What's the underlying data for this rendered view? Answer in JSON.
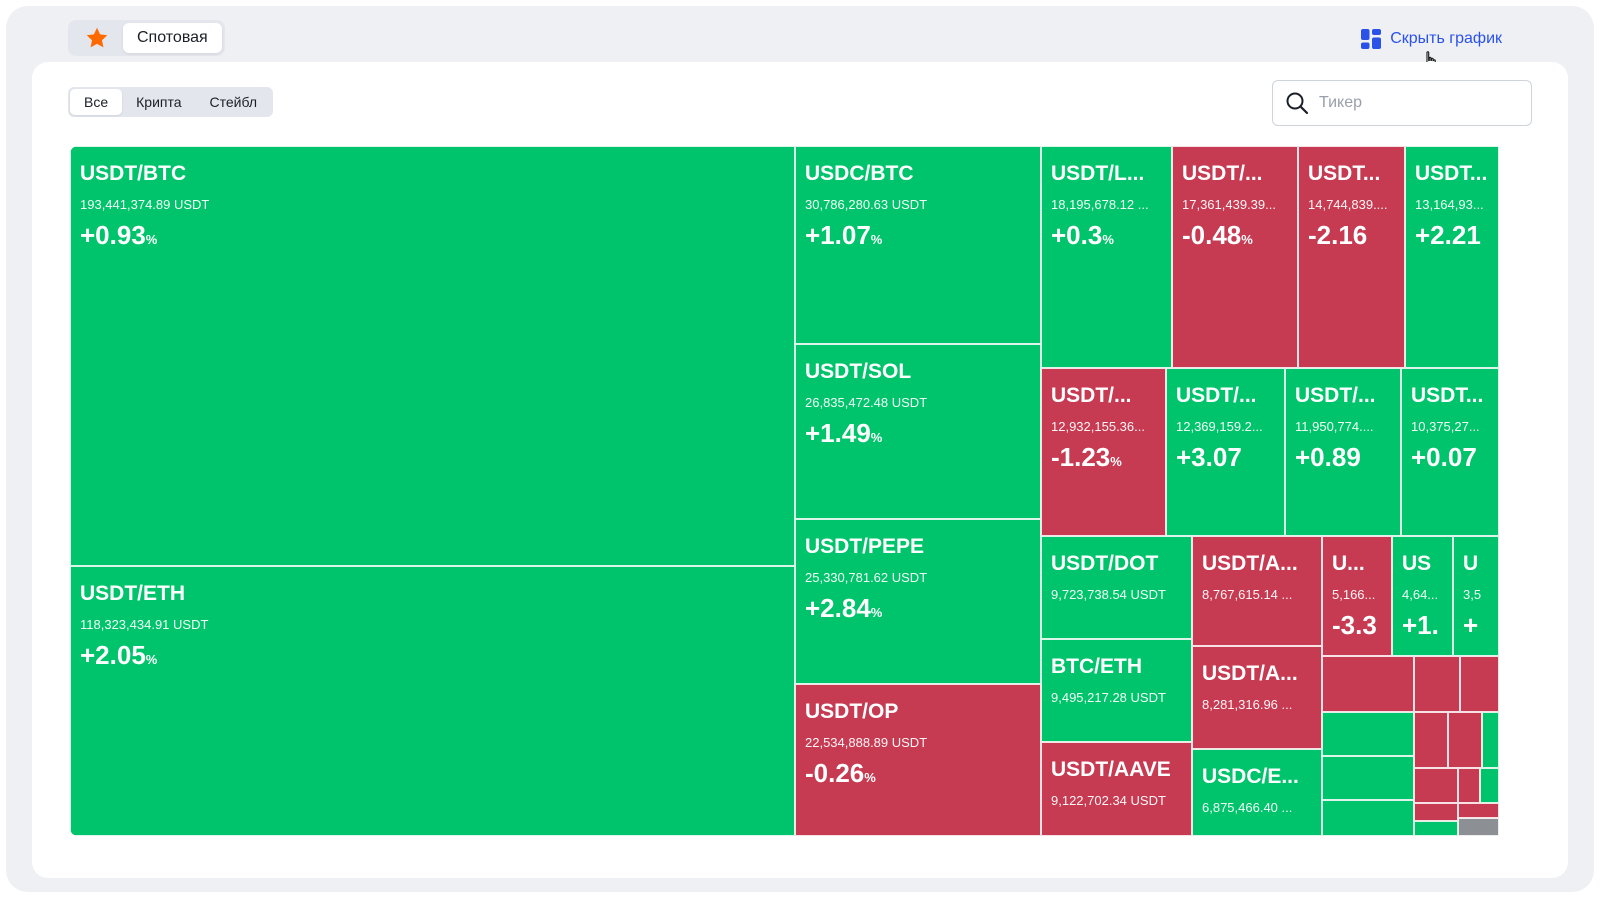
{
  "header": {
    "star_icon": "star-icon",
    "active_tab": "Спотовая",
    "hide_chart_label": "Скрыть график",
    "hide_chart_icon": "grid-icon"
  },
  "filters": [
    "Все",
    "Крипта",
    "Стейбл"
  ],
  "active_filter": "Все",
  "search": {
    "placeholder": "Тикер",
    "icon": "search-icon"
  },
  "colors": {
    "up": "#00c46b",
    "down": "#c63a52",
    "link": "#2b52e8",
    "star": "#ff6a00"
  },
  "tiles": [
    {
      "symbol": "USDT/BTC",
      "volume": "193,441,374.89 USDT",
      "change": "+0.93",
      "dir": "up"
    },
    {
      "symbol": "USDT/ETH",
      "volume": "118,323,434.91 USDT",
      "change": "+2.05",
      "dir": "up"
    },
    {
      "symbol": "USDC/BTC",
      "volume": "30,786,280.63 USDT",
      "change": "+1.07",
      "dir": "up"
    },
    {
      "symbol": "USDT/SOL",
      "volume": "26,835,472.48 USDT",
      "change": "+1.49",
      "dir": "up"
    },
    {
      "symbol": "USDT/PEPE",
      "volume": "25,330,781.62 USDT",
      "change": "+2.84",
      "dir": "up"
    },
    {
      "symbol": "USDT/OP",
      "volume": "22,534,888.89 USDT",
      "change": "-0.26",
      "dir": "down"
    },
    {
      "symbol": "USDT/L...",
      "volume": "18,195,678.12 ...",
      "change": "+0.3",
      "dir": "up"
    },
    {
      "symbol": "USDT/...",
      "volume": "17,361,439.39...",
      "change": "-0.48",
      "dir": "down"
    },
    {
      "symbol": "USDT...",
      "volume": "14,744,839....",
      "change": "-2.16",
      "dir": "down"
    },
    {
      "symbol": "USDT...",
      "volume": "13,164,93...",
      "change": "+2.21",
      "dir": "up"
    },
    {
      "symbol": "USDT/...",
      "volume": "12,932,155.36...",
      "change": "-1.23",
      "dir": "down"
    },
    {
      "symbol": "USDT/...",
      "volume": "12,369,159.2...",
      "change": "+3.07",
      "dir": "up"
    },
    {
      "symbol": "USDT/...",
      "volume": "11,950,774....",
      "change": "+0.89",
      "dir": "up"
    },
    {
      "symbol": "USDT...",
      "volume": "10,375,27...",
      "change": "+0.07",
      "dir": "up"
    },
    {
      "symbol": "USDT/DOT",
      "volume": "9,723,738.54 USDT",
      "change": "",
      "dir": "up"
    },
    {
      "symbol": "BTC/ETH",
      "volume": "9,495,217.28 USDT",
      "change": "",
      "dir": "up"
    },
    {
      "symbol": "USDT/AAVE",
      "volume": "9,122,702.34 USDT",
      "change": "",
      "dir": "down"
    },
    {
      "symbol": "USDT/A...",
      "volume": "8,767,615.14 ...",
      "change": "",
      "dir": "down"
    },
    {
      "symbol": "USDT/A...",
      "volume": "8,281,316.96 ...",
      "change": "",
      "dir": "down"
    },
    {
      "symbol": "USDC/E...",
      "volume": "6,875,466.40 ...",
      "change": "",
      "dir": "up"
    },
    {
      "symbol": "U...",
      "volume": "5,166...",
      "change": "-3.3",
      "dir": "down"
    },
    {
      "symbol": "US",
      "volume": "4,64...",
      "change": "+1.",
      "dir": "up"
    },
    {
      "symbol": "U",
      "volume": "3,5",
      "change": "+",
      "dir": "up"
    },
    {
      "symbol": "",
      "volume": "",
      "change": "",
      "dir": "down"
    },
    {
      "symbol": "",
      "volume": "",
      "change": "",
      "dir": "down"
    },
    {
      "symbol": "",
      "volume": "",
      "change": "",
      "dir": "down"
    },
    {
      "symbol": "",
      "volume": "",
      "change": "",
      "dir": "up"
    },
    {
      "symbol": "",
      "volume": "",
      "change": "",
      "dir": "up"
    },
    {
      "symbol": "",
      "volume": "",
      "change": "",
      "dir": "up"
    },
    {
      "symbol": "",
      "volume": "",
      "change": "",
      "dir": "down"
    },
    {
      "symbol": "",
      "volume": "",
      "change": "",
      "dir": "down"
    },
    {
      "symbol": "",
      "volume": "",
      "change": "",
      "dir": "up"
    },
    {
      "symbol": "",
      "volume": "",
      "change": "",
      "dir": "down"
    },
    {
      "symbol": "",
      "volume": "",
      "change": "",
      "dir": "down"
    },
    {
      "symbol": "",
      "volume": "",
      "change": "",
      "dir": "up"
    },
    {
      "symbol": "",
      "volume": "",
      "change": "",
      "dir": "down"
    },
    {
      "symbol": "",
      "volume": "",
      "change": "",
      "dir": "down"
    },
    {
      "symbol": "",
      "volume": "",
      "change": "",
      "dir": "up"
    },
    {
      "symbol": "",
      "volume": "",
      "change": "",
      "dir": "grey"
    }
  ]
}
